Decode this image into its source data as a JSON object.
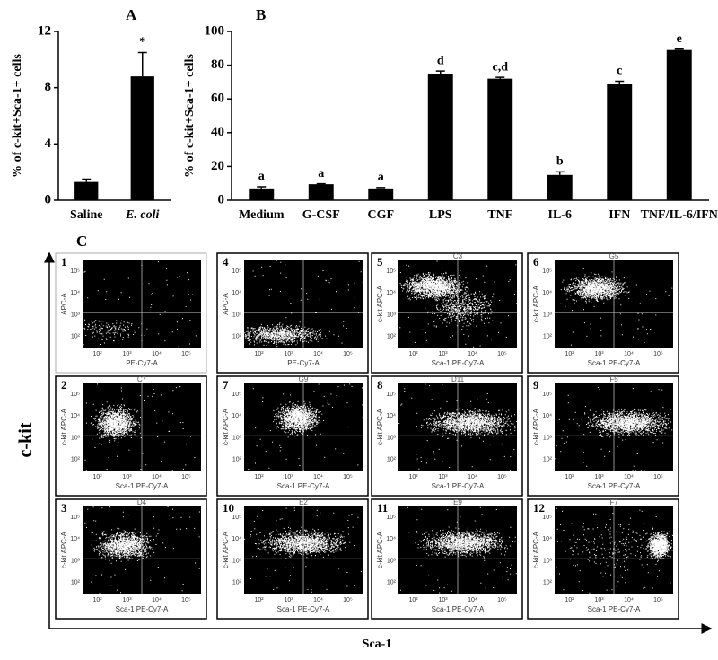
{
  "chart_data": [
    {
      "type": "bar",
      "label": "A",
      "ylabel": "% of c-kit+Sca-1+ cells",
      "categories": [
        "Saline",
        "E. coli"
      ],
      "values": [
        1.3,
        8.8
      ],
      "errors": [
        0.2,
        1.7
      ],
      "annotations": [
        null,
        "*"
      ],
      "color": "#000000",
      "ylim": [
        0,
        12
      ],
      "yticks": [
        0,
        4,
        8,
        12
      ]
    },
    {
      "type": "bar",
      "label": "B",
      "ylabel": "% of c-kit+Sca-1+ cells",
      "categories": [
        "Medium",
        "G-CSF",
        "CGF",
        "LPS",
        "TNF",
        "IL-6",
        "IFN",
        "TNF/IL-6/IFN"
      ],
      "values": [
        7,
        9.5,
        7,
        75,
        72,
        15,
        69,
        89
      ],
      "errors": [
        1,
        0.3,
        0.5,
        1.5,
        0.8,
        1.8,
        1.5,
        0.5
      ],
      "annotations": [
        "a",
        "a",
        "a",
        "d",
        "c,d",
        "b",
        "c",
        "e"
      ],
      "color": "#000000",
      "ylim": [
        0,
        100
      ],
      "yticks": [
        0,
        20,
        40,
        60,
        80,
        100
      ]
    }
  ],
  "panel_c": {
    "label": "C",
    "y_axis": "c-kit",
    "x_axis": "Sca-1",
    "ticks": [
      "10²",
      "10³",
      "10⁴",
      "10⁵"
    ],
    "plots": [
      {
        "number": "1",
        "title": null,
        "ylabel": "APC-A",
        "xlabel": "PE-Cy7-A"
      },
      {
        "number": "4",
        "title": null,
        "ylabel": "APC-A",
        "xlabel": "PE-Cy7-A"
      },
      {
        "number": "5",
        "title": "C3",
        "ylabel": "c-kit APC-A",
        "xlabel": "Sca-1 PE-Cy7-A"
      },
      {
        "number": "6",
        "title": "G5",
        "ylabel": "c-kit APC-A",
        "xlabel": "Sca-1 PE-Cy7-A"
      },
      {
        "number": "2",
        "title": "C7",
        "ylabel": "c-kit APC-A",
        "xlabel": "Sca-1 PE-Cy7-A"
      },
      {
        "number": "7",
        "title": "G9",
        "ylabel": "c-kit APC-A",
        "xlabel": "Sca-1 PE-Cy7-A"
      },
      {
        "number": "8",
        "title": "D11",
        "ylabel": "c-kit APC-A",
        "xlabel": "Sca-1 PE-Cy7-A"
      },
      {
        "number": "9",
        "title": "F5",
        "ylabel": "c-kit APC-A",
        "xlabel": "Sca-1 PE-Cy7-A"
      },
      {
        "number": "3",
        "title": "D4",
        "ylabel": "c-kit APC-A",
        "xlabel": "Sca-1 PE-Cy7-A"
      },
      {
        "number": "10",
        "title": "E2",
        "ylabel": "c-kit APC-A",
        "xlabel": "Sca-1 PE-Cy7-A"
      },
      {
        "number": "11",
        "title": "E9",
        "ylabel": "c-kit APC-A",
        "xlabel": "Sca-1 PE-Cy7-A"
      },
      {
        "number": "12",
        "title": "F7",
        "ylabel": "c-kit APC-A",
        "xlabel": "Sca-1 PE-Cy7-A"
      }
    ]
  }
}
